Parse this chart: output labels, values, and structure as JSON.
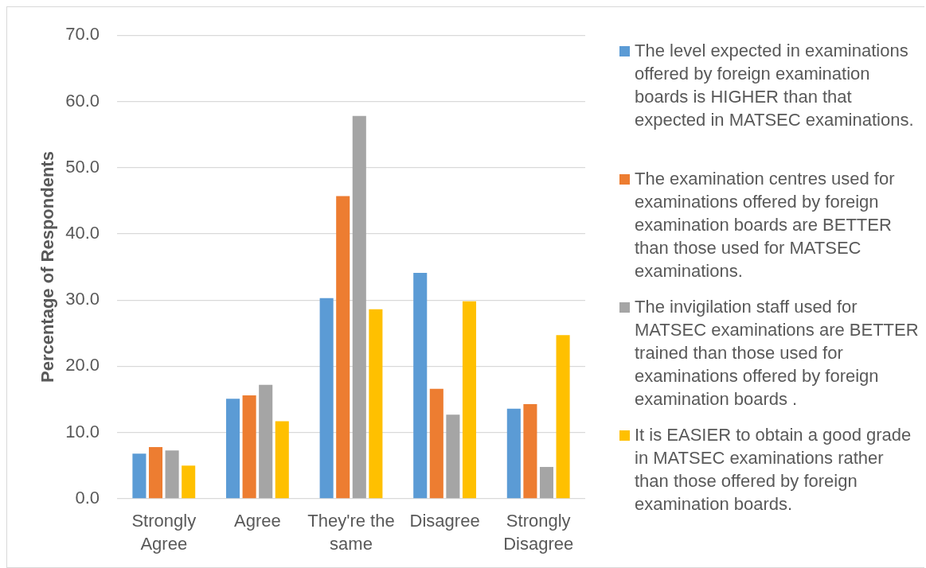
{
  "chart_data": {
    "type": "bar",
    "ylabel": "Percentage of Respondents",
    "categories": [
      "Strongly Agree",
      "Agree",
      "They're the same",
      "Disagree",
      "Strongly Disagree"
    ],
    "series": [
      {
        "name": "The level expected in examinations offered by foreign examination boards is HIGHER than that expected in MATSEC examinations.",
        "color": "#5b9bd5",
        "values": [
          6.8,
          15.1,
          30.3,
          34.1,
          13.6
        ]
      },
      {
        "name": "The examination centres used for examinations offered by foreign examination boards are BETTER than those used for MATSEC examinations.",
        "color": "#ed7d31",
        "values": [
          7.8,
          15.6,
          45.7,
          16.6,
          14.3
        ]
      },
      {
        "name": "The invigilation staff used for MATSEC examinations are BETTER trained than those used for examinations offered by foreign examination boards .",
        "color": "#a5a5a5",
        "values": [
          7.3,
          17.2,
          57.8,
          12.7,
          4.8
        ]
      },
      {
        "name": "It is EASIER to obtain a good grade in MATSEC examinations rather than those offered by foreign examination boards.",
        "color": "#ffc000",
        "values": [
          5.0,
          11.7,
          28.6,
          29.8,
          24.7
        ]
      }
    ],
    "ylim": [
      0,
      70
    ],
    "yticks": [
      {
        "value": 0,
        "label": "0.0"
      },
      {
        "value": 10,
        "label": "10.0"
      },
      {
        "value": 20,
        "label": "20.0"
      },
      {
        "value": 30,
        "label": "30.0"
      },
      {
        "value": 40,
        "label": "40.0"
      },
      {
        "value": 50,
        "label": "50.0"
      },
      {
        "value": 60,
        "label": "60.0"
      },
      {
        "value": 70,
        "label": "70.0"
      }
    ],
    "grid": "y",
    "legend": "right"
  }
}
